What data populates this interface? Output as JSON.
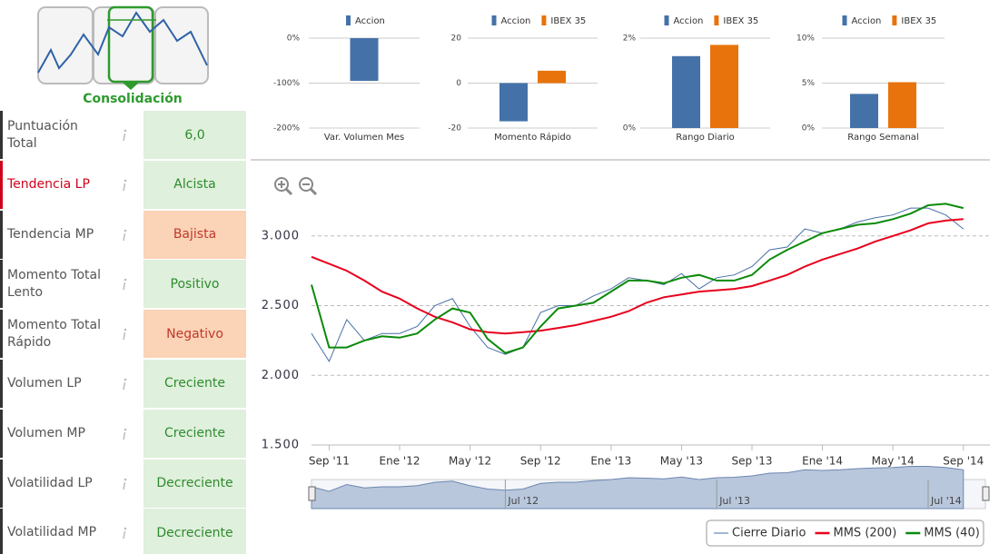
{
  "logo": {
    "label": "Consolidación"
  },
  "indicators": [
    {
      "label": "Puntuación Total",
      "value": "6,0",
      "color": "#dff0dc",
      "text_color": "#2e8b2e",
      "label_color": "#555555"
    },
    {
      "label": "Tendencia LP",
      "value": "Alcista",
      "color": "#dff0dc",
      "text_color": "#2e8b2e",
      "label_color": "#d0021b"
    },
    {
      "label": "Tendencia MP",
      "value": "Bajista",
      "color": "#fbd3b7",
      "text_color": "#c0392b",
      "label_color": "#555555"
    },
    {
      "label": "Momento Total Lento",
      "value": "Positivo",
      "color": "#dff0dc",
      "text_color": "#2e8b2e",
      "label_color": "#555555"
    },
    {
      "label": "Momento Total Rápido",
      "value": "Negativo",
      "color": "#fbd3b7",
      "text_color": "#c0392b",
      "label_color": "#555555"
    },
    {
      "label": "Volumen LP",
      "value": "Creciente",
      "color": "#dff0dc",
      "text_color": "#2e8b2e",
      "label_color": "#555555"
    },
    {
      "label": "Volumen MP",
      "value": "Creciente",
      "color": "#dff0dc",
      "text_color": "#2e8b2e",
      "label_color": "#555555"
    },
    {
      "label": "Volatilidad LP",
      "value": "Decreciente",
      "color": "#dff0dc",
      "text_color": "#2e8b2e",
      "label_color": "#555555"
    },
    {
      "label": "Volatilidad MP",
      "value": "Decreciente",
      "color": "#dff0dc",
      "text_color": "#2e8b2e",
      "label_color": "#555555"
    }
  ],
  "chart_data": [
    {
      "type": "bar",
      "xlabel": "Var. Volumen Mes",
      "ylim": [
        -200,
        0
      ],
      "yticks": [
        {
          "value": 0,
          "label": "0%"
        },
        {
          "value": -100,
          "label": "-100%"
        },
        {
          "value": -200,
          "label": "-200%"
        }
      ],
      "series": [
        {
          "name": "Accion",
          "color": "#4472a8",
          "values": [
            -95
          ]
        }
      ]
    },
    {
      "type": "bar",
      "xlabel": "Momento Rápido",
      "ylim": [
        -20,
        20
      ],
      "yticks": [
        20,
        0,
        -20
      ],
      "series": [
        {
          "name": "Accion",
          "color": "#4472a8",
          "values": [
            -17
          ]
        },
        {
          "name": "IBEX 35",
          "color": "#e8730c",
          "values": [
            5.5
          ]
        }
      ]
    },
    {
      "type": "bar",
      "xlabel": "Rango Diario",
      "ylim": [
        0,
        2
      ],
      "yticks": [
        {
          "value": 2,
          "label": "2%"
        },
        {
          "value": 0,
          "label": "0%"
        }
      ],
      "series": [
        {
          "name": "Accion",
          "color": "#4472a8",
          "values": [
            1.6
          ]
        },
        {
          "name": "IBEX 35",
          "color": "#e8730c",
          "values": [
            1.85
          ]
        }
      ]
    },
    {
      "type": "bar",
      "xlabel": "Rango Semanal",
      "ylim": [
        0,
        10
      ],
      "yticks": [
        {
          "value": 10,
          "label": "10%"
        },
        {
          "value": 5,
          "label": "5%"
        },
        {
          "value": 0,
          "label": "0%"
        }
      ],
      "series": [
        {
          "name": "Accion",
          "color": "#4472a8",
          "values": [
            3.8
          ]
        },
        {
          "name": "IBEX 35",
          "color": "#e8730c",
          "values": [
            5.1
          ]
        }
      ]
    },
    {
      "type": "line",
      "ylim": [
        1500,
        3500
      ],
      "yticks": [
        {
          "value": 1500,
          "label": "1.500"
        },
        {
          "value": 2000,
          "label": "2.000"
        },
        {
          "value": 2500,
          "label": "2.500"
        },
        {
          "value": 3000,
          "label": "3.000"
        }
      ],
      "grid": true,
      "categories": [
        null,
        "Sep '11",
        null,
        null,
        null,
        "Ene '12",
        null,
        null,
        null,
        "May '12",
        null,
        null,
        null,
        "Sep '12",
        null,
        null,
        null,
        "Ene '13",
        null,
        null,
        null,
        "May '13",
        null,
        null,
        null,
        "Sep '13",
        null,
        null,
        null,
        "Ene '14",
        null,
        null,
        null,
        "May '14",
        null,
        null,
        null,
        "Sep '14"
      ],
      "series": [
        {
          "name": "Cierre Diario",
          "color": "#4a6fa5",
          "values": [
            2300,
            2100,
            2400,
            2250,
            2300,
            2300,
            2350,
            2500,
            2550,
            2350,
            2200,
            2150,
            2200,
            2450,
            2500,
            2500,
            2570,
            2620,
            2700,
            2680,
            2650,
            2730,
            2620,
            2700,
            2720,
            2780,
            2900,
            2920,
            3050,
            3020,
            3050,
            3100,
            3130,
            3150,
            3200,
            3200,
            3150,
            3050
          ]
        },
        {
          "name": "MMS (200)",
          "color": "#e8001c",
          "values": [
            2850,
            2800,
            2750,
            2680,
            2600,
            2550,
            2480,
            2420,
            2380,
            2330,
            2310,
            2300,
            2310,
            2320,
            2340,
            2360,
            2390,
            2420,
            2460,
            2520,
            2560,
            2580,
            2600,
            2610,
            2620,
            2640,
            2680,
            2720,
            2780,
            2830,
            2870,
            2910,
            2960,
            3000,
            3040,
            3090,
            3110,
            3120
          ]
        },
        {
          "name": "MMS (40)",
          "color": "#0a8a0a",
          "values": [
            2650,
            2200,
            2200,
            2250,
            2280,
            2270,
            2300,
            2400,
            2480,
            2450,
            2260,
            2160,
            2200,
            2350,
            2480,
            2500,
            2520,
            2600,
            2680,
            2680,
            2660,
            2700,
            2720,
            2680,
            2680,
            2720,
            2830,
            2900,
            2960,
            3020,
            3050,
            3080,
            3090,
            3120,
            3160,
            3220,
            3230,
            3200
          ]
        }
      ],
      "navigator_labels": [
        "Jul '12",
        "Jul '13",
        "Jul '14"
      ]
    }
  ]
}
